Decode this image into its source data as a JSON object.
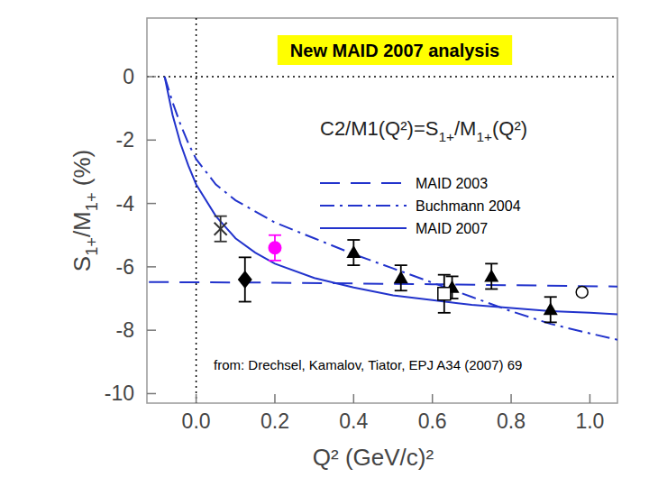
{
  "chart_data": {
    "type": "scatter",
    "title": "New MAID 2007 analysis",
    "annotations": [
      "C2/M1(Q²)=S1+/M1+(Q²)",
      "from: Drechsel, Kamalov, Tiator, EPJ A34 (2007) 69"
    ],
    "x_label": "Q² (GeV/c)²",
    "y_label": "S1+/M1+ (%)",
    "xlim": [
      -0.125,
      1.07
    ],
    "ylim": [
      -10.3,
      1.85
    ],
    "xticks": [
      {
        "value": 0,
        "label": "0.0"
      },
      0.2,
      0.4,
      0.6,
      0.8,
      {
        "value": 1,
        "label": "1.0"
      }
    ],
    "yticks": [
      0,
      -2,
      -4,
      -6,
      -8,
      -10
    ],
    "legend": "center",
    "series": [
      {
        "name": "MAID 2003",
        "type": "line",
        "line_style": "dashed",
        "color": "#2233cc",
        "x": [
          -0.12,
          0.2,
          0.6,
          1.07
        ],
        "values": [
          -6.48,
          -6.5,
          -6.55,
          -6.62
        ]
      },
      {
        "name": "Buchmann 2004",
        "type": "line",
        "line_style": "dashdot",
        "color": "#2233cc",
        "x": [
          -0.08,
          -0.06,
          -0.04,
          -0.02,
          0,
          0.05,
          0.1,
          0.2,
          0.3,
          0.4,
          0.5,
          0.6,
          0.7,
          0.8,
          0.9,
          1.0,
          1.07
        ],
        "values": [
          0,
          -0.8,
          -1.5,
          -2.1,
          -2.6,
          -3.4,
          -3.9,
          -4.6,
          -5.1,
          -5.6,
          -6.05,
          -6.5,
          -6.95,
          -7.4,
          -7.8,
          -8.1,
          -8.3
        ]
      },
      {
        "name": "MAID 2007",
        "type": "line",
        "line_style": "solid",
        "color": "#2233cc",
        "x": [
          -0.08,
          -0.06,
          -0.04,
          -0.02,
          0,
          0.05,
          0.1,
          0.15,
          0.2,
          0.3,
          0.4,
          0.5,
          0.6,
          0.7,
          0.8,
          0.9,
          1.0,
          1.07
        ],
        "values": [
          0,
          -1.2,
          -2.1,
          -2.8,
          -3.4,
          -4.4,
          -5.1,
          -5.55,
          -5.9,
          -6.35,
          -6.65,
          -6.9,
          -7.05,
          -7.2,
          -7.3,
          -7.4,
          -7.45,
          -7.5
        ]
      },
      {
        "type": "scatter",
        "marker": "x",
        "color": "#333333",
        "x": [
          0.062
        ],
        "values": [
          -4.8
        ],
        "errors": [
          0.4
        ]
      },
      {
        "type": "scatter",
        "marker": "diamond",
        "color": "#000000",
        "x": [
          0.124
        ],
        "values": [
          -6.4
        ],
        "errors": [
          0.7
        ]
      },
      {
        "type": "scatter",
        "marker": "circle",
        "color": "#ff00ff",
        "x": [
          0.2
        ],
        "values": [
          -5.4
        ],
        "errors": [
          0.4
        ]
      },
      {
        "type": "scatter",
        "marker": "triangle",
        "color": "#000000",
        "x": [
          0.4,
          0.52,
          0.65,
          0.75,
          0.9
        ],
        "values": [
          -5.55,
          -6.35,
          -6.65,
          -6.3,
          -7.35
        ],
        "errors": [
          0.4,
          0.4,
          0.35,
          0.4,
          0.4
        ]
      },
      {
        "type": "scatter",
        "marker": "square-open",
        "color": "#000000",
        "x": [
          0.63
        ],
        "values": [
          -6.85
        ],
        "errors": [
          0.6
        ]
      },
      {
        "type": "scatter",
        "marker": "circle-open",
        "color": "#000000",
        "x": [
          0.98
        ],
        "values": [
          -6.8
        ]
      }
    ]
  }
}
